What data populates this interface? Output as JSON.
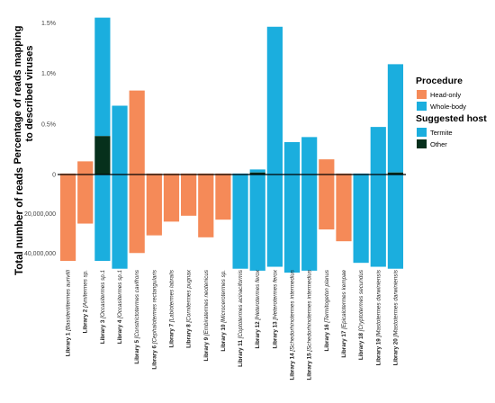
{
  "chart_data": {
    "type": "bar",
    "categories": [
      {
        "lib": "Library 1",
        "sp": "Basidentitermes aurivilli"
      },
      {
        "lib": "Library 2",
        "sp": "Amitermes sp."
      },
      {
        "lib": "Library 3",
        "sp": "Occasitermes sp.1"
      },
      {
        "lib": "Library 4",
        "sp": "Occasitermes sp.1"
      },
      {
        "lib": "Library 5",
        "sp": "Constrictotermes cavifrons"
      },
      {
        "lib": "Library 6",
        "sp": "Cephalotermes rectangularis"
      },
      {
        "lib": "Library 7",
        "sp": "Labiotermes labralis"
      },
      {
        "lib": "Library 8",
        "sp": "Cornitermes pugnax"
      },
      {
        "lib": "Library 9",
        "sp": "Embiratermes neotenicus"
      },
      {
        "lib": "Library 10",
        "sp": "Microcerotermes sp."
      },
      {
        "lib": "Library 11",
        "sp": "Coptotermes acinaciformis"
      },
      {
        "lib": "Library 12",
        "sp": "Heterotermes ferox"
      },
      {
        "lib": "Library 13",
        "sp": "Heterotermes ferox"
      },
      {
        "lib": "Library 14",
        "sp": "Schedorhinotermes intermedius"
      },
      {
        "lib": "Library 15",
        "sp": "Schedorhinotermes intermedius"
      },
      {
        "lib": "Library 16",
        "sp": "Termitogeton planus"
      },
      {
        "lib": "Library 17",
        "sp": "Epicalotermes kempae"
      },
      {
        "lib": "Library 18",
        "sp": "Cryptotermes secundus"
      },
      {
        "lib": "Library 19",
        "sp": "Mastotermes darwiniensis"
      },
      {
        "lib": "Library 20",
        "sp": "Mastotermes darwiniensis"
      }
    ],
    "procedure": [
      "Head-only",
      "Head-only",
      "Whole-body",
      "Whole-body",
      "Head-only",
      "Head-only",
      "Head-only",
      "Head-only",
      "Head-only",
      "Head-only",
      "Whole-body",
      "Whole-body",
      "Whole-body",
      "Whole-body",
      "Whole-body",
      "Head-only",
      "Head-only",
      "Whole-body",
      "Whole-body",
      "Whole-body"
    ],
    "top_panel": {
      "ylabel": "Percentage of reads mapping to described viruses",
      "ylim": [
        0,
        1.6
      ],
      "ticks": [
        "0",
        "0.5%",
        "1.0%",
        "1.5%"
      ],
      "tick_values": [
        0,
        0.5,
        1.0,
        1.5
      ],
      "series": [
        {
          "name": "Termite",
          "values": [
            0.01,
            0.13,
            1.17,
            0.68,
            0.83,
            0.01,
            0.01,
            0.01,
            0.01,
            0.01,
            0.01,
            0.03,
            1.46,
            0.32,
            0.37,
            0.15,
            0.01,
            0.01,
            0.47,
            1.07
          ]
        },
        {
          "name": "Other",
          "values": [
            0.0,
            0.0,
            0.38,
            0.0,
            0.0,
            0.0,
            0.0,
            0.0,
            0.0,
            0.0,
            0.0,
            0.02,
            0.0,
            0.0,
            0.0,
            0.0,
            0.0,
            0.0,
            0.0,
            0.02
          ]
        }
      ]
    },
    "bottom_panel": {
      "ylabel": "Total number of reads",
      "ylim": [
        0,
        55000000
      ],
      "ticks": [
        "20,000,000",
        "40,000,000"
      ],
      "tick_values": [
        20000000,
        40000000
      ],
      "values": [
        44000000,
        25000000,
        44000000,
        48000000,
        40000000,
        31000000,
        24000000,
        21000000,
        32000000,
        23000000,
        48000000,
        49000000,
        47000000,
        50000000,
        49000000,
        28000000,
        34000000,
        45000000,
        47000000,
        48000000
      ]
    },
    "legend": {
      "procedure_title": "Procedure",
      "procedure_items": [
        {
          "label": "Head-only",
          "color": "#F58A58"
        },
        {
          "label": "Whole-body",
          "color": "#1BAEDE"
        }
      ],
      "host_title": "Suggested host",
      "host_items": [
        {
          "label": "Termite",
          "color": "#1BAEDE"
        },
        {
          "label": "Other",
          "color": "#06301C"
        }
      ],
      "placement": "right"
    },
    "colors": {
      "head_only": "#F58A58",
      "whole_body": "#1BAEDE",
      "other": "#06301C",
      "axis": "#000000"
    }
  }
}
